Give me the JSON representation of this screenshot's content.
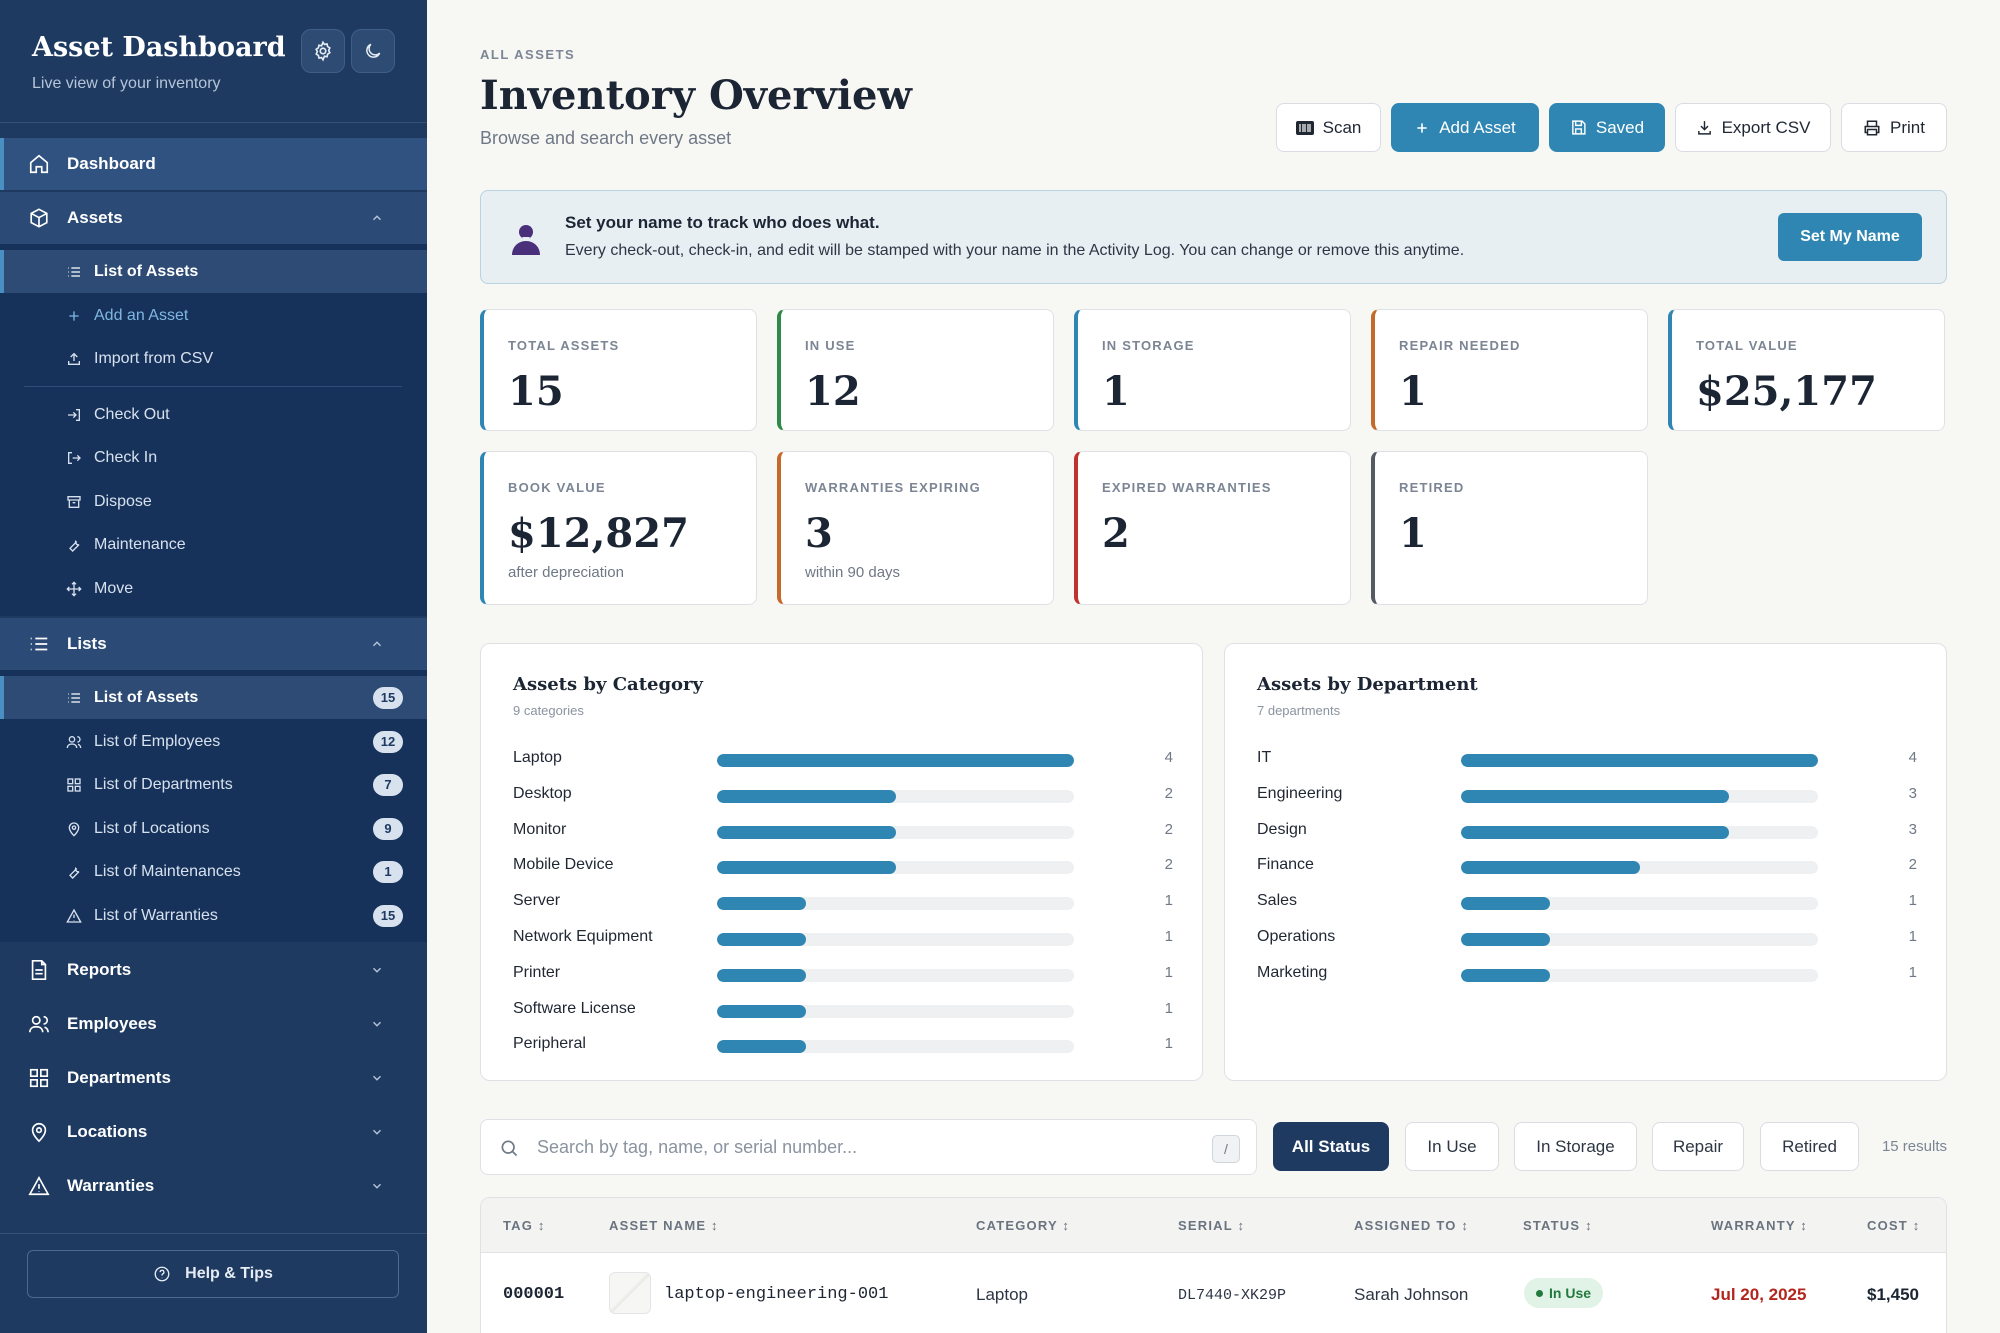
{
  "app": {
    "title": "Asset Dashboard",
    "subtitle": "Live view of your inventory"
  },
  "sidebar": {
    "dashboard": "Dashboard",
    "assets": {
      "label": "Assets",
      "items": [
        "List of Assets",
        "Add an Asset",
        "Import from CSV",
        "Check Out",
        "Check In",
        "Dispose",
        "Maintenance",
        "Move"
      ]
    },
    "lists": {
      "label": "Lists",
      "items": [
        {
          "label": "List of Assets",
          "count": "15"
        },
        {
          "label": "List of Employees",
          "count": "12"
        },
        {
          "label": "List of Departments",
          "count": "7"
        },
        {
          "label": "List of Locations",
          "count": "9"
        },
        {
          "label": "List of Maintenances",
          "count": "1"
        },
        {
          "label": "List of Warranties",
          "count": "15"
        }
      ]
    },
    "reports": "Reports",
    "employees": "Employees",
    "departments": "Departments",
    "locations": "Locations",
    "warranties": "Warranties",
    "help": "Help & Tips"
  },
  "header": {
    "eyebrow": "ALL ASSETS",
    "title": "Inventory Overview",
    "subtitle": "Browse and search every asset",
    "buttons": {
      "scan": "Scan",
      "add": "Add Asset",
      "saved": "Saved",
      "export": "Export CSV",
      "print": "Print"
    }
  },
  "banner": {
    "title": "Set your name to track who does what.",
    "text": "Every check-out, check-in, and edit will be stamped with your name in the Activity Log. You can change or remove this anytime.",
    "button": "Set My Name"
  },
  "stats": [
    {
      "label": "TOTAL ASSETS",
      "value": "15",
      "note": "",
      "color": "#2f86b2"
    },
    {
      "label": "IN USE",
      "value": "12",
      "note": "",
      "color": "#2f8a4a"
    },
    {
      "label": "IN STORAGE",
      "value": "1",
      "note": "",
      "color": "#2f86b2"
    },
    {
      "label": "REPAIR NEEDED",
      "value": "1",
      "note": "",
      "color": "#c46a2a"
    },
    {
      "label": "TOTAL VALUE",
      "value": "$25,177",
      "note": "",
      "color": "#2f86b2"
    },
    {
      "label": "BOOK VALUE",
      "value": "$12,827",
      "note": "after depreciation",
      "color": "#2f86b2"
    },
    {
      "label": "WARRANTIES EXPIRING",
      "value": "3",
      "note": "within 90 days",
      "color": "#c46a2a"
    },
    {
      "label": "EXPIRED WARRANTIES",
      "value": "2",
      "note": "",
      "color": "#c0322d"
    },
    {
      "label": "RETIRED",
      "value": "1",
      "note": "",
      "color": "#555b63"
    }
  ],
  "category_panel": {
    "title": "Assets by Category",
    "subtitle": "9 categories",
    "max": 4,
    "rows": [
      {
        "label": "Laptop",
        "value": 4
      },
      {
        "label": "Desktop",
        "value": 2
      },
      {
        "label": "Monitor",
        "value": 2
      },
      {
        "label": "Mobile Device",
        "value": 2
      },
      {
        "label": "Server",
        "value": 1
      },
      {
        "label": "Network Equipment",
        "value": 1
      },
      {
        "label": "Printer",
        "value": 1
      },
      {
        "label": "Software License",
        "value": 1
      },
      {
        "label": "Peripheral",
        "value": 1
      }
    ]
  },
  "department_panel": {
    "title": "Assets by Department",
    "subtitle": "7 departments",
    "max": 4,
    "rows": [
      {
        "label": "IT",
        "value": 4
      },
      {
        "label": "Engineering",
        "value": 3
      },
      {
        "label": "Design",
        "value": 3
      },
      {
        "label": "Finance",
        "value": 2
      },
      {
        "label": "Sales",
        "value": 1
      },
      {
        "label": "Operations",
        "value": 1
      },
      {
        "label": "Marketing",
        "value": 1
      }
    ]
  },
  "search": {
    "placeholder": "Search by tag, name, or serial number...",
    "shortcut": "/"
  },
  "filters": [
    "All Status",
    "In Use",
    "In Storage",
    "Repair",
    "Retired"
  ],
  "results": "15 results",
  "table": {
    "columns": [
      "TAG",
      "ASSET NAME",
      "CATEGORY",
      "SERIAL",
      "ASSIGNED TO",
      "STATUS",
      "WARRANTY",
      "COST"
    ],
    "rows": [
      {
        "tag": "000001",
        "name": "laptop-engineering-001",
        "category": "Laptop",
        "serial": "DL7440-XK29P",
        "assigned": "Sarah Johnson",
        "status": "In Use",
        "warranty": "Jul 20, 2025",
        "cost": "$1,450"
      }
    ]
  }
}
